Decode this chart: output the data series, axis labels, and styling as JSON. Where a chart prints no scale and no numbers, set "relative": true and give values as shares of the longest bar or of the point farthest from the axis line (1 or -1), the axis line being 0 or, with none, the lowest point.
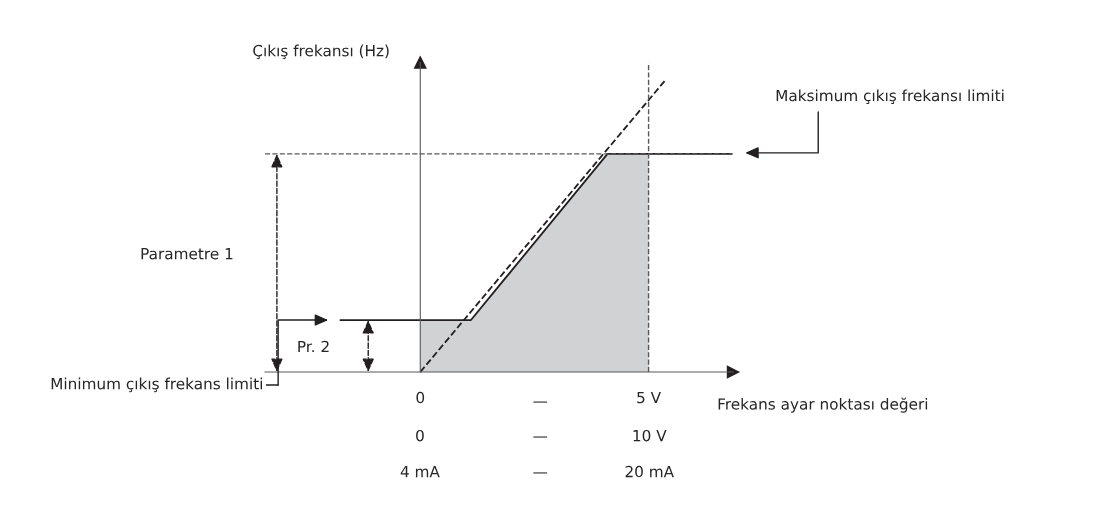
{
  "chart_data": {
    "type": "line",
    "relative": true,
    "xlabel": "Frekans ayar noktası değeri",
    "ylabel": "Çıkış frekansı (Hz)",
    "xlim": [
      -3.4,
      6.85
    ],
    "xticks": [
      0,
      {
        "value": 5,
        "label": "5 V"
      }
    ],
    "grid": false,
    "series": [
      {
        "type": "area",
        "color": "#d1d2d4",
        "x": [
          0,
          1.11,
          4.1,
          5
        ],
        "values": [
          0.178,
          0.178,
          0.747,
          0.747
        ]
      },
      {
        "color": "#231f20",
        "line_style": "dashed",
        "x": [
          0,
          5.37
        ],
        "values": [
          0,
          1
        ]
      },
      {
        "color": "#231f20",
        "line_style": "solid",
        "x": [
          -1.75,
          1.11,
          4.1,
          6.81
        ],
        "values": [
          0.178,
          0.178,
          0.747,
          0.747
        ]
      }
    ],
    "ref_lines": [
      {
        "axis": "y",
        "value": 0.747,
        "color": "#58595b",
        "line_style": "dashed"
      },
      {
        "axis": "x",
        "value": 5,
        "color": "#58595b",
        "line_style": "dashed"
      }
    ],
    "annotations": [
      "Maksimum çıkış frekansı limiti",
      "Minimum çıkış frekans limiti",
      "Parametre 1",
      "Pr. 2",
      "—",
      "0",
      "—",
      "10 V",
      "4 mA",
      "—",
      "20 mA"
    ]
  }
}
